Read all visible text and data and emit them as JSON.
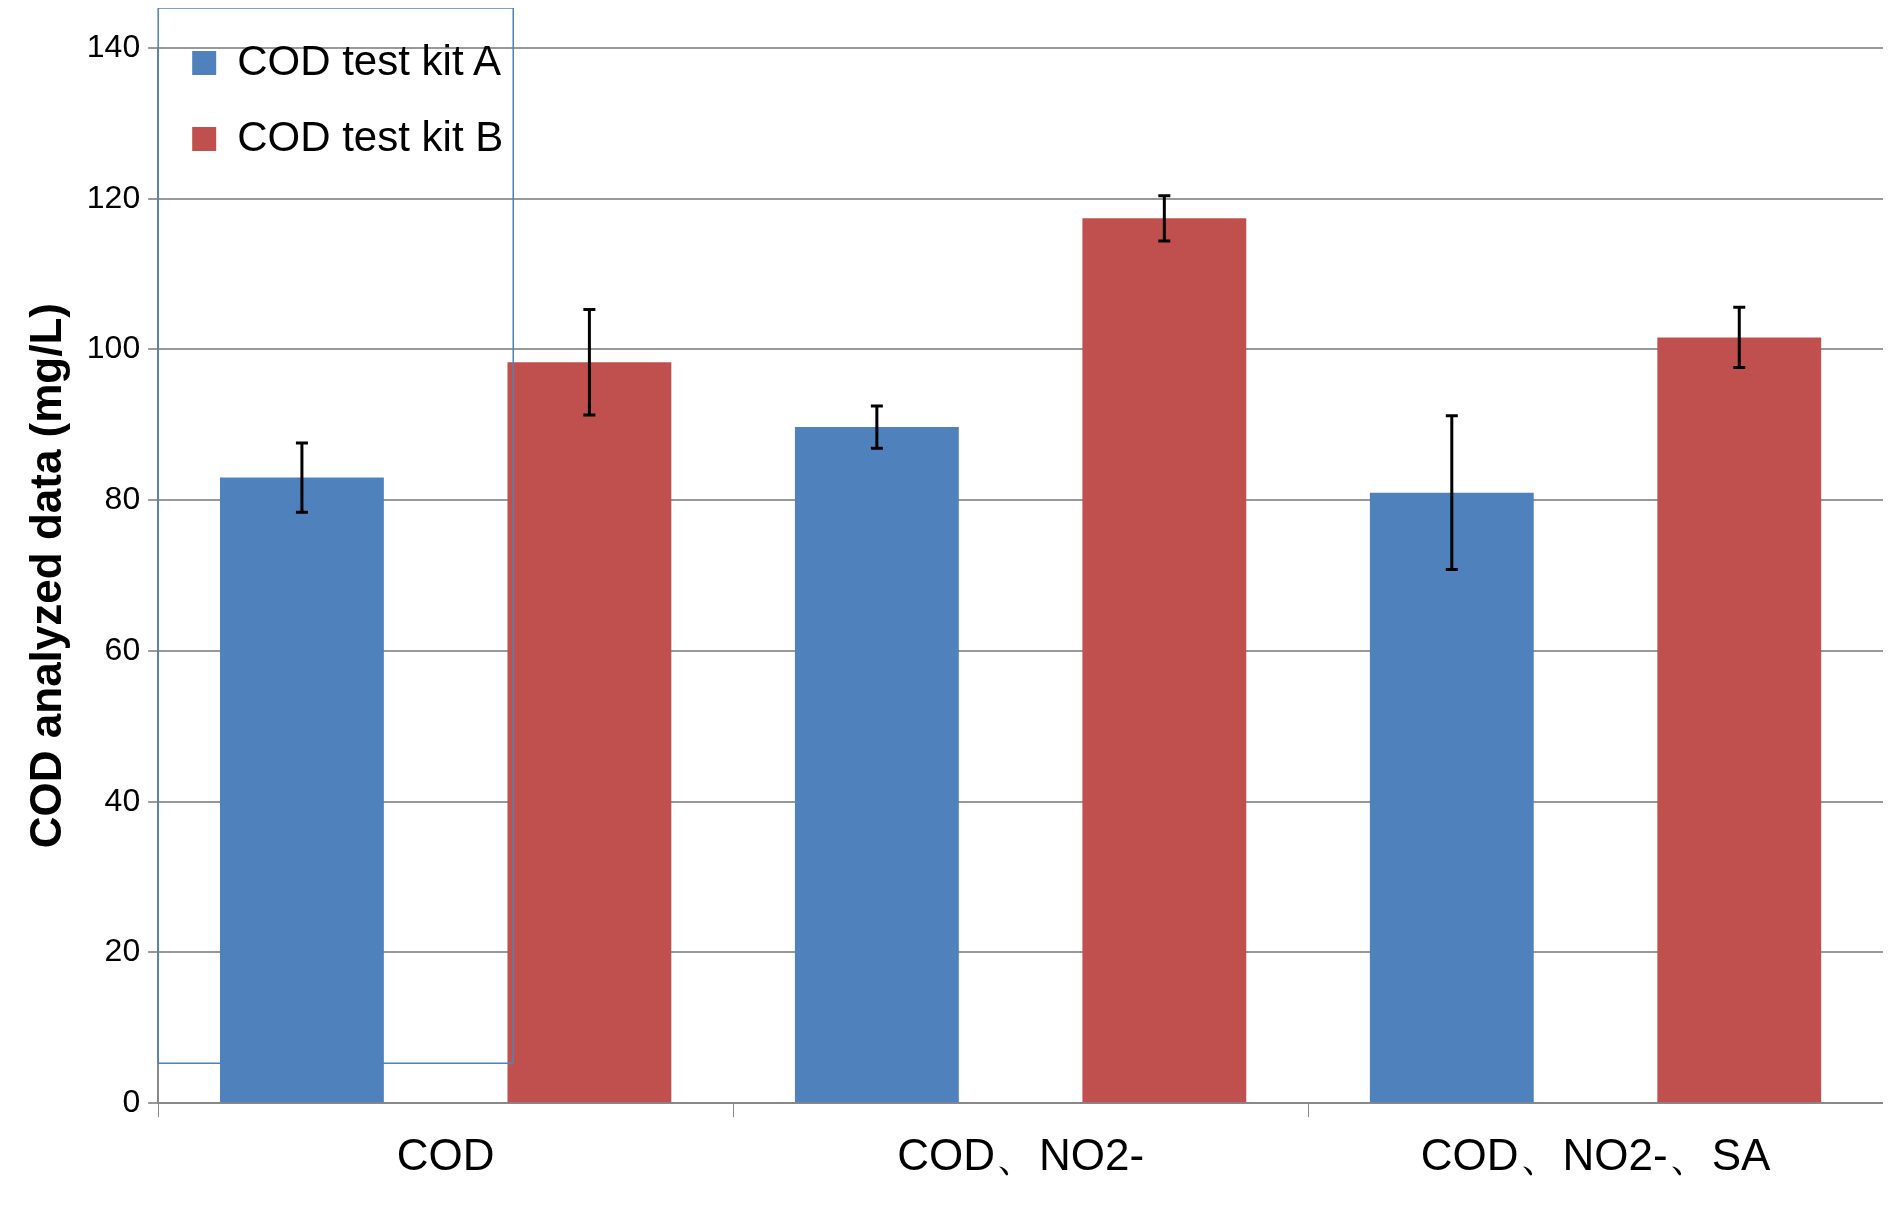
{
  "chart_data": {
    "type": "bar",
    "ylabel": "COD analyzed data (mg/L)",
    "categories": [
      "COD",
      "COD、NO2-",
      "COD、NO2-、SA"
    ],
    "series": [
      {
        "name": "COD test kit A",
        "color": "#4f81bd",
        "values": [
          83,
          89.7,
          81
        ],
        "errors": [
          4.6,
          2.8,
          10.2
        ]
      },
      {
        "name": "COD test kit B",
        "color": "#c0504d",
        "values": [
          98.3,
          117.4,
          101.6
        ],
        "errors": [
          7,
          3,
          4
        ]
      }
    ],
    "ylim": [
      0,
      140
    ],
    "yticks": [
      0,
      20,
      40,
      60,
      80,
      100,
      120,
      140
    ],
    "grid": "y",
    "legend": "top left"
  }
}
